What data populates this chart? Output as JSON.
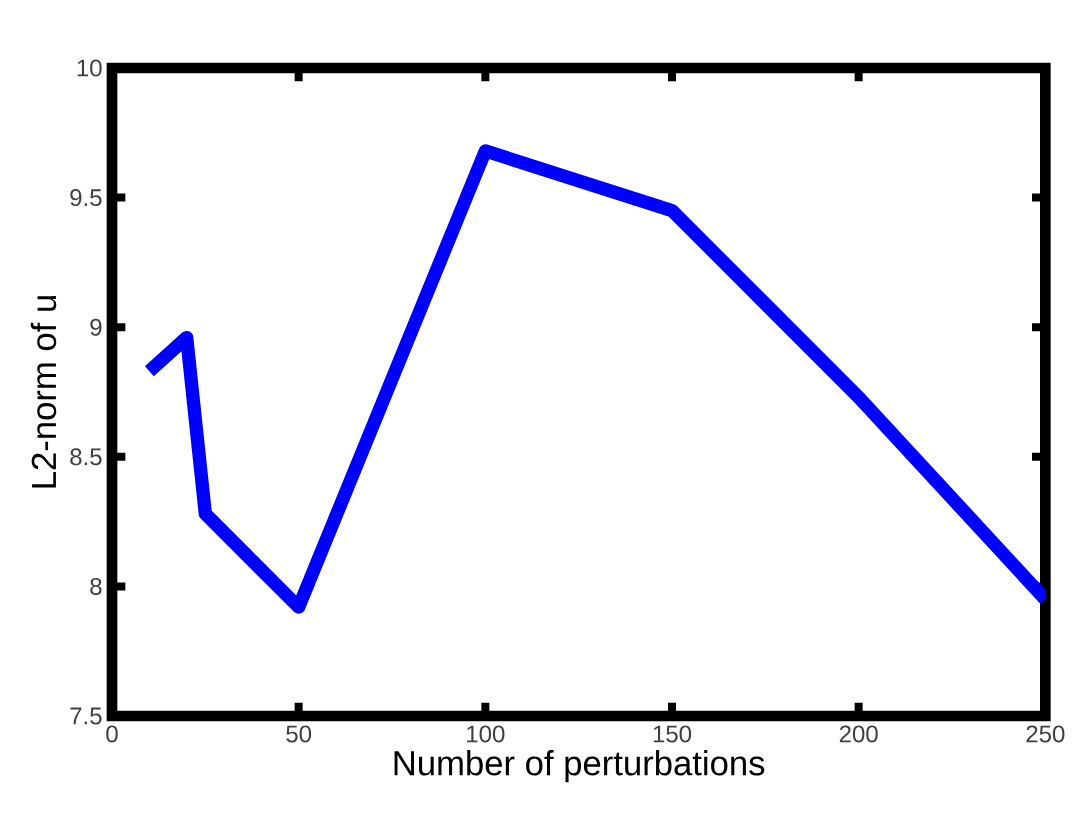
{
  "chart_data": {
    "type": "line",
    "xlabel": "Number of perturbations",
    "ylabel": "L2-norm of u",
    "x": [
      10,
      20,
      25,
      50,
      100,
      150,
      200,
      250
    ],
    "values": [
      8.83,
      8.96,
      8.28,
      7.92,
      9.68,
      9.45,
      8.73,
      7.95
    ],
    "color": "#0000ff",
    "xlim": [
      0,
      250
    ],
    "ylim": [
      7.5,
      10
    ],
    "xticks": [
      0,
      50,
      100,
      150,
      200,
      250
    ],
    "yticks": [
      7.5,
      8,
      8.5,
      9,
      9.5,
      10
    ],
    "grid": false,
    "marker": "none",
    "line_style": "solid"
  }
}
